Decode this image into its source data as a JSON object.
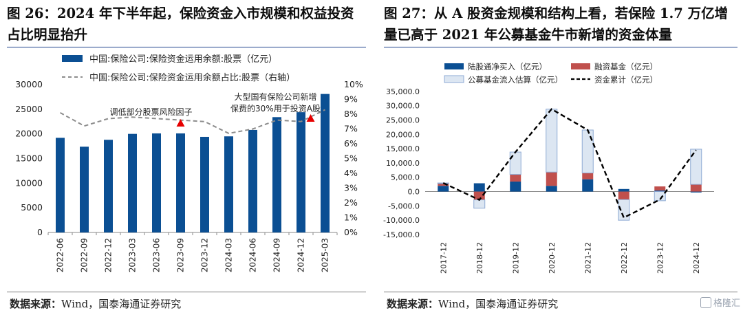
{
  "left": {
    "title": "图 26：2024 年下半年起，保险资金入市规模和权益投资占比明显抬升",
    "source_label": "数据来源：",
    "source_name": "Wind，国泰海通证券研究"
  },
  "right": {
    "title": "图 27：从 A 股资金规模和结构上看，若保险 1.7 万亿增量已高于 2021 年公募基金牛市新增的资金体量",
    "source_label": "数据来源：",
    "source_name": "Wind，国泰海通证券研究"
  },
  "watermark": "格隆汇",
  "chart_data": [
    {
      "type": "bar",
      "categories": [
        "2022-06",
        "2022-09",
        "2022-12",
        "2023-03",
        "2023-06",
        "2023-09",
        "2023-12",
        "2024-03",
        "2024-06",
        "2024-09",
        "2024-12",
        "2025-03"
      ],
      "series": [
        {
          "name": "中国:保险公司:保险资金运用余额:股票（亿元）",
          "type": "bar",
          "axis": "left",
          "color": "#0b4f93",
          "values": [
            19200,
            17400,
            18800,
            20000,
            20100,
            20100,
            19400,
            19500,
            20800,
            23400,
            24400,
            28100
          ]
        },
        {
          "name": "中国:保险公司:保险资金运用余额占比:股票（右轴）",
          "type": "line",
          "axis": "right",
          "color": "#8c8c8c",
          "values": [
            8.1,
            7.2,
            7.7,
            7.8,
            7.7,
            7.6,
            7.5,
            6.7,
            7.0,
            7.6,
            7.5,
            8.3
          ]
        }
      ],
      "ylim": [
        0,
        30000
      ],
      "yticks": [
        0,
        5000,
        10000,
        15000,
        20000,
        25000,
        30000
      ],
      "y2lim": [
        0,
        10
      ],
      "y2ticks": [
        "0%",
        "1%",
        "2%",
        "3%",
        "4%",
        "5%",
        "6%",
        "7%",
        "8%",
        "9%",
        "10%"
      ],
      "annotations": [
        {
          "text": "调低部分股票风险因子",
          "at": "2023-09"
        },
        {
          "text": "大型国有保险公司新增保费的30%用于投资A股",
          "lines": [
            "大型国有保险公司新增",
            "保费的30%用于投资A股"
          ],
          "at": "2024-12"
        }
      ],
      "legend": "top-left"
    },
    {
      "type": "bar",
      "categories": [
        "2017-12",
        "2018-12",
        "2019-12",
        "2020-12",
        "2021-12",
        "2022-12",
        "2023-12",
        "2024-12"
      ],
      "series": [
        {
          "name": "陆股通净买入（亿元）",
          "type": "bar",
          "color": "#0b4f93",
          "values": [
            2000,
            2900,
            3500,
            2000,
            4300,
            900,
            400,
            -300
          ]
        },
        {
          "name": "融资基金（亿元）",
          "type": "bar",
          "color": "#c0504d",
          "values": [
            800,
            -2900,
            2500,
            4800,
            2200,
            -2800,
            1400,
            2500
          ]
        },
        {
          "name": "公募基金流入估算（亿元）",
          "type": "bar",
          "color": "#dce6f2",
          "values": [
            200,
            -2900,
            7800,
            22000,
            15000,
            -7200,
            -3200,
            12300
          ]
        },
        {
          "name": "资金累计（亿元）",
          "type": "line",
          "color": "#000000",
          "values": [
            3000,
            -2900,
            13800,
            28800,
            21500,
            -9100,
            -2800,
            14500
          ]
        }
      ],
      "ylim": [
        -15000,
        40000
      ],
      "yticks": [
        "-15,000.0",
        "-10,000.0",
        "-5,000.0",
        "0.0",
        "5,000.0",
        "10,000.0",
        "15,000.0",
        "20,000.0",
        "25,000.0",
        "30,000.0",
        "35,000.0",
        "40,000.0"
      ],
      "legend": "top"
    }
  ]
}
